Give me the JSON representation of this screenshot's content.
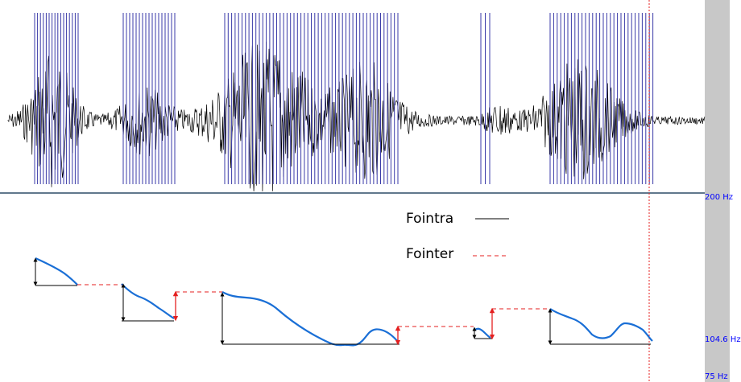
{
  "scale": {
    "top_label": "200 Hz",
    "mid_label": "104.6 Hz",
    "bottom_label": "75 Hz"
  },
  "legend": {
    "intra_label": "Fointra",
    "inter_label": "Fointer"
  },
  "colors": {
    "waveform": "#000000",
    "pitch_marks": "#3a3aa8",
    "pitch_curve": "#1a6fd6",
    "intra_arrows": "#000000",
    "inter_lines": "#e41f1f",
    "divider": "#2c4a66",
    "scrollbar": "#c8c8c8",
    "scale_text": "#0000ff"
  }
}
